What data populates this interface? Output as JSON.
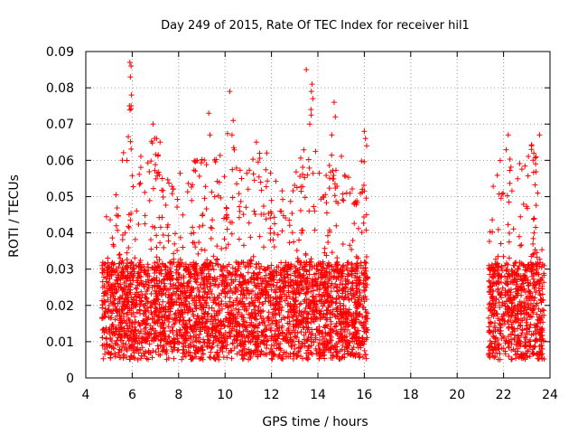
{
  "chart_data": {
    "type": "scatter",
    "title": "Day 249 of 2015, Rate Of TEC Index for receiver hil1",
    "xlabel": "GPS time / hours",
    "ylabel": "ROTI / TECUs",
    "xlim": [
      4,
      24
    ],
    "ylim": [
      0,
      0.09
    ],
    "grid": true,
    "marker": "plus",
    "color": "#ff0000",
    "x_ticks": [
      "4",
      "6",
      "8",
      "10",
      "12",
      "14",
      "16",
      "18",
      "20",
      "22",
      "24"
    ],
    "y_ticks": [
      "0",
      "0.01",
      "0.02",
      "0.03",
      "0.04",
      "0.05",
      "0.06",
      "0.07",
      "0.08",
      "0.09"
    ],
    "series": [
      {
        "name": "ROTI",
        "segments": [
          {
            "start": 4.7,
            "end": 16.15
          },
          {
            "start": 21.35,
            "end": 23.75
          }
        ],
        "baseline_range": [
          0.005,
          0.032
        ],
        "envelope": [
          {
            "x": 4.7,
            "y": 0.04
          },
          {
            "x": 5.2,
            "y": 0.045
          },
          {
            "x": 5.5,
            "y": 0.05
          },
          {
            "x": 5.85,
            "y": 0.075
          },
          {
            "x": 6.3,
            "y": 0.055
          },
          {
            "x": 6.9,
            "y": 0.068
          },
          {
            "x": 7.3,
            "y": 0.05
          },
          {
            "x": 8.0,
            "y": 0.05
          },
          {
            "x": 8.5,
            "y": 0.062
          },
          {
            "x": 9.3,
            "y": 0.055
          },
          {
            "x": 10.1,
            "y": 0.065
          },
          {
            "x": 10.8,
            "y": 0.055
          },
          {
            "x": 11.3,
            "y": 0.062
          },
          {
            "x": 12.1,
            "y": 0.05
          },
          {
            "x": 12.7,
            "y": 0.045
          },
          {
            "x": 13.5,
            "y": 0.062
          },
          {
            "x": 13.8,
            "y": 0.07
          },
          {
            "x": 14.3,
            "y": 0.055
          },
          {
            "x": 14.8,
            "y": 0.06
          },
          {
            "x": 15.4,
            "y": 0.05
          },
          {
            "x": 16.1,
            "y": 0.065
          },
          {
            "x": 21.4,
            "y": 0.045
          },
          {
            "x": 22.1,
            "y": 0.062
          },
          {
            "x": 22.8,
            "y": 0.055
          },
          {
            "x": 23.3,
            "y": 0.062
          },
          {
            "x": 23.7,
            "y": 0.04
          }
        ],
        "spikes": [
          {
            "x": 5.9,
            "y": 0.087
          },
          {
            "x": 5.95,
            "y": 0.086
          },
          {
            "x": 5.92,
            "y": 0.083
          },
          {
            "x": 5.97,
            "y": 0.078
          },
          {
            "x": 5.88,
            "y": 0.075
          },
          {
            "x": 6.9,
            "y": 0.07
          },
          {
            "x": 7.05,
            "y": 0.066
          },
          {
            "x": 7.2,
            "y": 0.065
          },
          {
            "x": 9.3,
            "y": 0.073
          },
          {
            "x": 9.35,
            "y": 0.067
          },
          {
            "x": 10.2,
            "y": 0.079
          },
          {
            "x": 10.35,
            "y": 0.071
          },
          {
            "x": 10.3,
            "y": 0.067
          },
          {
            "x": 11.35,
            "y": 0.065
          },
          {
            "x": 11.8,
            "y": 0.062
          },
          {
            "x": 13.5,
            "y": 0.085
          },
          {
            "x": 13.75,
            "y": 0.081
          },
          {
            "x": 13.72,
            "y": 0.079
          },
          {
            "x": 13.78,
            "y": 0.077
          },
          {
            "x": 13.7,
            "y": 0.074
          },
          {
            "x": 13.65,
            "y": 0.07
          },
          {
            "x": 14.7,
            "y": 0.076
          },
          {
            "x": 14.75,
            "y": 0.072
          },
          {
            "x": 14.6,
            "y": 0.067
          },
          {
            "x": 16.0,
            "y": 0.068
          },
          {
            "x": 16.05,
            "y": 0.066
          },
          {
            "x": 16.1,
            "y": 0.064
          },
          {
            "x": 22.2,
            "y": 0.067
          },
          {
            "x": 23.2,
            "y": 0.063
          },
          {
            "x": 23.55,
            "y": 0.067
          },
          {
            "x": 23.4,
            "y": 0.061
          }
        ],
        "sample_count": 4200,
        "seed": 249
      }
    ]
  }
}
